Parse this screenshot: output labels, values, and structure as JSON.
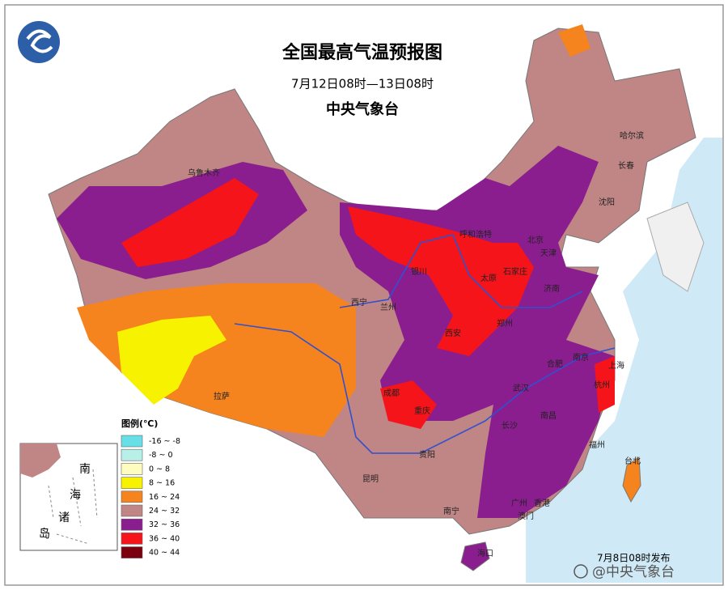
{
  "header": {
    "title": "全国最高气温预报图",
    "subtitle": "7月12日08时—13日08时",
    "agency": "中央气象台"
  },
  "legend": {
    "title": "图例(℃)",
    "items": [
      {
        "label": "-16 ~ -8",
        "color": "#66dfe6"
      },
      {
        "label": "-8 ~ 0",
        "color": "#b8f0e8"
      },
      {
        "label": "0 ~ 8",
        "color": "#fffcc0"
      },
      {
        "label": "8 ~ 16",
        "color": "#f7f200"
      },
      {
        "label": "16 ~ 24",
        "color": "#f5841f"
      },
      {
        "label": "24 ~ 32",
        "color": "#c08585"
      },
      {
        "label": "32 ~ 36",
        "color": "#8b1e8f"
      },
      {
        "label": "36 ~ 40",
        "color": "#f4141a"
      },
      {
        "label": "40 ~ 44",
        "color": "#7a0010"
      }
    ]
  },
  "inset": {
    "labels": [
      "南",
      "海",
      "诸",
      "岛"
    ]
  },
  "cities": [
    "乌鲁木齐",
    "哈尔滨",
    "长春",
    "沈阳",
    "呼和浩特",
    "北京",
    "天津",
    "银川",
    "太原",
    "石家庄",
    "济南",
    "西宁",
    "兰州",
    "西安",
    "郑州",
    "合肥",
    "南京",
    "上海",
    "杭州",
    "武汉",
    "成都",
    "重庆",
    "长沙",
    "南昌",
    "福州",
    "贵阳",
    "昆明",
    "拉萨",
    "南宁",
    "广州",
    "香港",
    "澳门",
    "台北",
    "海口"
  ],
  "footer": {
    "release": "7月8日08时发布",
    "watermark": "@中央气象台"
  }
}
